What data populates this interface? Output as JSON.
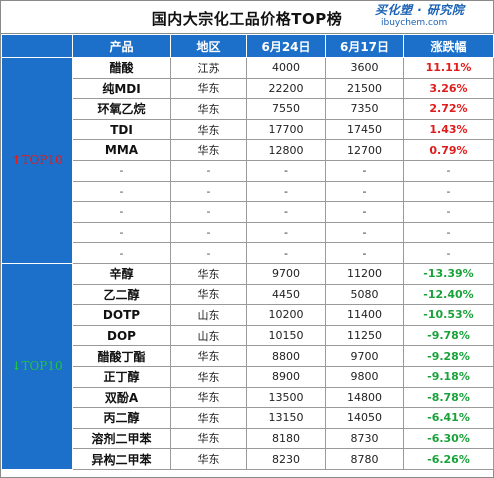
{
  "title": "国内大宗化工品价格TOP榜",
  "logo": {
    "main": "买化塑 · 研究院",
    "sub": "ibuychem.com"
  },
  "columns": [
    "产品",
    "地区",
    "6月24日",
    "6月17日",
    "涨跌幅"
  ],
  "up_section": {
    "label": "TOP10",
    "arrow": "↑",
    "rows": [
      {
        "product": "醋酸",
        "region": "江苏",
        "jun24": "4000",
        "jun17": "3600",
        "change": "11.11%"
      },
      {
        "product": "纯MDI",
        "region": "华东",
        "jun24": "22200",
        "jun17": "21500",
        "change": "3.26%"
      },
      {
        "product": "环氧乙烷",
        "region": "华东",
        "jun24": "7550",
        "jun17": "7350",
        "change": "2.72%"
      },
      {
        "product": "TDI",
        "region": "华东",
        "jun24": "17700",
        "jun17": "17450",
        "change": "1.43%"
      },
      {
        "product": "MMA",
        "region": "华东",
        "jun24": "12800",
        "jun17": "12700",
        "change": "0.79%"
      },
      {
        "product": "-",
        "region": "-",
        "jun24": "-",
        "jun17": "-",
        "change": "-"
      },
      {
        "product": "-",
        "region": "-",
        "jun24": "-",
        "jun17": "-",
        "change": "-"
      },
      {
        "product": "-",
        "region": "-",
        "jun24": "-",
        "jun17": "-",
        "change": "-"
      },
      {
        "product": "-",
        "region": "-",
        "jun24": "-",
        "jun17": "-",
        "change": "-"
      },
      {
        "product": "-",
        "region": "-",
        "jun24": "-",
        "jun17": "-",
        "change": "-"
      }
    ]
  },
  "down_section": {
    "label": "TOP10",
    "arrow": "↓",
    "rows": [
      {
        "product": "辛醇",
        "region": "华东",
        "jun24": "9700",
        "jun17": "11200",
        "change": "-13.39%"
      },
      {
        "product": "乙二醇",
        "region": "华东",
        "jun24": "4450",
        "jun17": "5080",
        "change": "-12.40%"
      },
      {
        "product": "DOTP",
        "region": "山东",
        "jun24": "10200",
        "jun17": "11400",
        "change": "-10.53%"
      },
      {
        "product": "DOP",
        "region": "山东",
        "jun24": "10150",
        "jun17": "11250",
        "change": "-9.78%"
      },
      {
        "product": "醋酸丁酯",
        "region": "华东",
        "jun24": "8800",
        "jun17": "9700",
        "change": "-9.28%"
      },
      {
        "product": "正丁醇",
        "region": "华东",
        "jun24": "8900",
        "jun17": "9800",
        "change": "-9.18%"
      },
      {
        "product": "双酚A",
        "region": "华东",
        "jun24": "13500",
        "jun17": "14800",
        "change": "-8.78%"
      },
      {
        "product": "丙二醇",
        "region": "华东",
        "jun24": "13150",
        "jun17": "14050",
        "change": "-6.41%"
      },
      {
        "product": "溶剂二甲苯",
        "region": "华东",
        "jun24": "8180",
        "jun17": "8730",
        "change": "-6.30%"
      },
      {
        "product": "异构二甲苯",
        "region": "华东",
        "jun24": "8230",
        "jun17": "8780",
        "change": "-6.26%"
      }
    ]
  },
  "colors": {
    "header_bg": "#1c70c9",
    "up": "#e01b1b",
    "down": "#1aa23a",
    "logo": "#1b62b5"
  }
}
